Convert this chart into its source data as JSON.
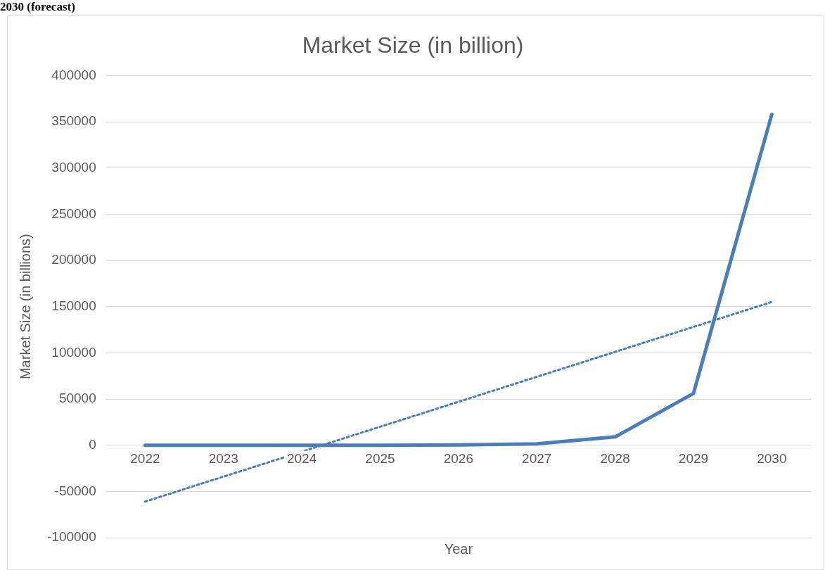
{
  "chart_data": {
    "type": "line",
    "title": "Market Size (in billion)",
    "xlabel": "Year",
    "ylabel": "Market Size (in billions)",
    "annotations": [
      "2030 (forecast)"
    ],
    "categories": [
      "2022",
      "2023",
      "2024",
      "2025",
      "2026",
      "2027",
      "2028",
      "2029",
      "2030"
    ],
    "series": [
      {
        "color": "#4a7ebb",
        "values": [
          0,
          0,
          0,
          0,
          300,
          1500,
          9000,
          56000,
          358000
        ],
        "line_style": "solid"
      },
      {
        "type": "line",
        "color": "#4a7ebb",
        "values": [
          -61000,
          null,
          null,
          null,
          null,
          null,
          null,
          null,
          155000
        ],
        "line_style": "dotted"
      }
    ],
    "ylim": [
      -100000,
      400000
    ],
    "yticks": [
      -100000,
      -50000,
      0,
      50000,
      100000,
      150000,
      200000,
      250000,
      300000,
      350000,
      400000
    ],
    "grid": "y",
    "legend": false,
    "marker": "none"
  }
}
